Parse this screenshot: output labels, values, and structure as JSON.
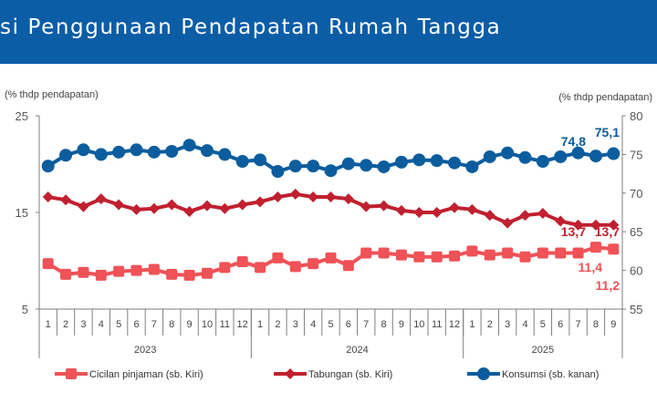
{
  "header": {
    "title": "si Penggunaan Pendapatan Rumah Tangga"
  },
  "colors": {
    "header": "#0b5da6",
    "cicilan": "#ef5257",
    "tabungan": "#c0202f",
    "konsumsi": "#0b5d9e",
    "axis": "#7f7f7f"
  },
  "chart_data": {
    "type": "line",
    "left_axis": {
      "label": "(% thdp pendapatan)",
      "range": [
        5,
        25
      ],
      "ticks": [
        "5",
        "15",
        "25"
      ]
    },
    "right_axis": {
      "label": "(% thdp pendapatan)",
      "range": [
        55,
        80
      ],
      "ticks": [
        "55",
        "60",
        "65",
        "70",
        "75",
        "80"
      ]
    },
    "months": [
      "1",
      "2",
      "3",
      "4",
      "5",
      "6",
      "7",
      "8",
      "9",
      "10",
      "11",
      "12",
      "1",
      "2",
      "3",
      "4",
      "5",
      "6",
      "7",
      "8",
      "9",
      "10",
      "11",
      "12",
      "1",
      "2",
      "3",
      "4",
      "5",
      "6",
      "7",
      "8",
      "9"
    ],
    "years": [
      {
        "label": "2023",
        "count": 12
      },
      {
        "label": "2024",
        "count": 12
      },
      {
        "label": "2025",
        "count": 9
      }
    ],
    "series": [
      {
        "name": "Cicilan pinjaman (sb. Kiri)",
        "axis": "left",
        "marker": "square",
        "values": [
          9.7,
          8.6,
          8.8,
          8.5,
          8.9,
          9.0,
          9.1,
          8.6,
          8.5,
          8.7,
          9.3,
          9.9,
          9.3,
          10.3,
          9.4,
          9.7,
          10.3,
          9.5,
          10.8,
          10.8,
          10.6,
          10.4,
          10.4,
          10.5,
          11.0,
          10.6,
          10.8,
          10.4,
          10.8,
          10.8,
          10.8,
          11.4,
          11.2
        ],
        "labels": [
          "11,4",
          "11,2"
        ]
      },
      {
        "name": "Tabungan (sb. Kiri)",
        "axis": "left",
        "marker": "diamond",
        "values": [
          16.6,
          16.3,
          15.6,
          16.4,
          15.8,
          15.3,
          15.4,
          15.8,
          15.1,
          15.7,
          15.4,
          15.8,
          16.1,
          16.6,
          16.9,
          16.6,
          16.6,
          16.4,
          15.6,
          15.7,
          15.2,
          15.0,
          15.0,
          15.5,
          15.3,
          14.7,
          13.9,
          14.7,
          14.9,
          14.1,
          13.7,
          13.7,
          13.7
        ],
        "labels": [
          "13,7",
          "13,7"
        ]
      },
      {
        "name": "Konsumsi (sb. kanan)",
        "axis": "right",
        "marker": "circle",
        "values": [
          73.5,
          74.9,
          75.6,
          75.0,
          75.3,
          75.6,
          75.3,
          75.4,
          76.2,
          75.5,
          75.0,
          74.1,
          74.3,
          72.8,
          73.5,
          73.5,
          72.9,
          73.8,
          73.6,
          73.4,
          74.0,
          74.3,
          74.2,
          73.9,
          73.4,
          74.7,
          75.2,
          74.6,
          74.1,
          74.7,
          75.2,
          74.8,
          75.1
        ],
        "labels": [
          "74,8",
          "75,1"
        ]
      }
    ]
  }
}
